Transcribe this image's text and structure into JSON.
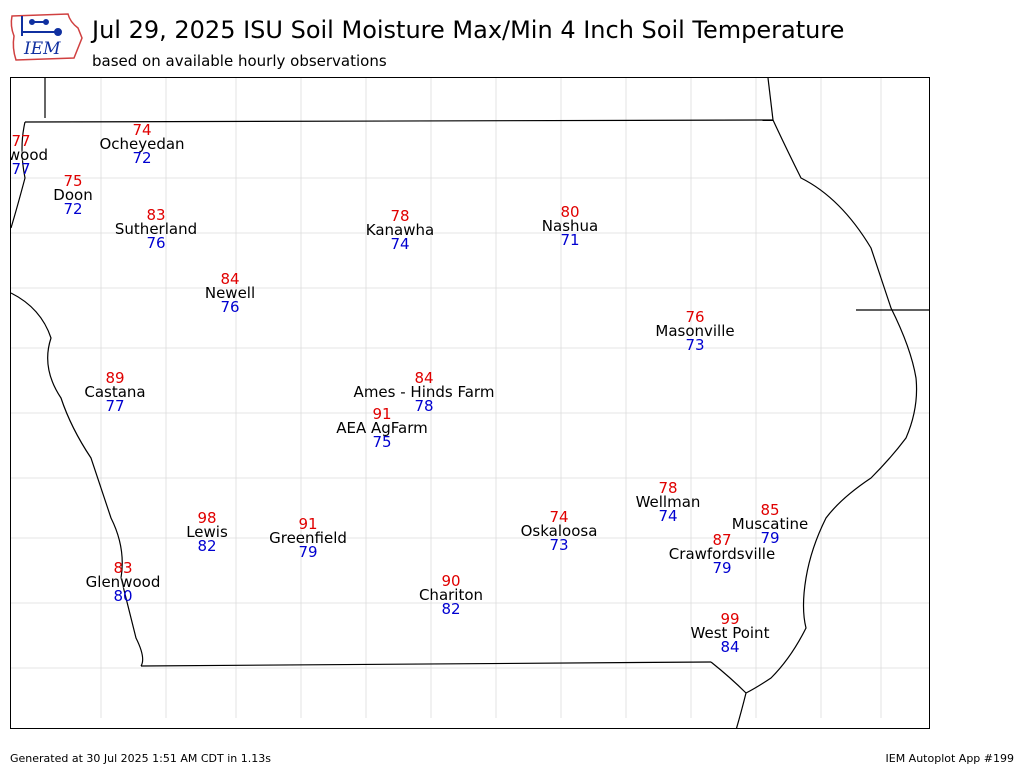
{
  "header": {
    "logo_text": "IEM",
    "title": "Jul 29, 2025 ISU Soil Moisture Max/Min 4 Inch Soil Temperature",
    "subtitle": "based on available hourly observations"
  },
  "colors": {
    "max": "#e00000",
    "min": "#0000d0",
    "name": "#000000"
  },
  "stations": [
    {
      "name": "Inwood",
      "max": "77",
      "min": "77"
    },
    {
      "name": "Ocheyedan",
      "max": "74",
      "min": "72"
    },
    {
      "name": "Doon",
      "max": "75",
      "min": "72"
    },
    {
      "name": "Sutherland",
      "max": "83",
      "min": "76"
    },
    {
      "name": "Kanawha",
      "max": "78",
      "min": "74"
    },
    {
      "name": "Nashua",
      "max": "80",
      "min": "71"
    },
    {
      "name": "Newell",
      "max": "84",
      "min": "76"
    },
    {
      "name": "Masonville",
      "max": "76",
      "min": "73"
    },
    {
      "name": "Castana",
      "max": "89",
      "min": "77"
    },
    {
      "name": "Ames - Hinds Farm",
      "max": "84",
      "min": "78"
    },
    {
      "name": "AEA AgFarm",
      "max": "91",
      "min": "75"
    },
    {
      "name": "Wellman",
      "max": "78",
      "min": "74"
    },
    {
      "name": "Lewis",
      "max": "98",
      "min": "82"
    },
    {
      "name": "Greenfield",
      "max": "91",
      "min": "79"
    },
    {
      "name": "Oskaloosa",
      "max": "74",
      "min": "73"
    },
    {
      "name": "Muscatine",
      "max": "85",
      "min": "79"
    },
    {
      "name": "Crawfordsville",
      "max": "87",
      "min": "79"
    },
    {
      "name": "Glenwood",
      "max": "83",
      "min": "80"
    },
    {
      "name": "Chariton",
      "max": "90",
      "min": "82"
    },
    {
      "name": "West Point",
      "max": "99",
      "min": "84"
    }
  ],
  "footer": {
    "generated": "Generated at 30 Jul 2025 1:51 AM CDT in 1.13s",
    "app": "IEM Autoplot App #199"
  }
}
